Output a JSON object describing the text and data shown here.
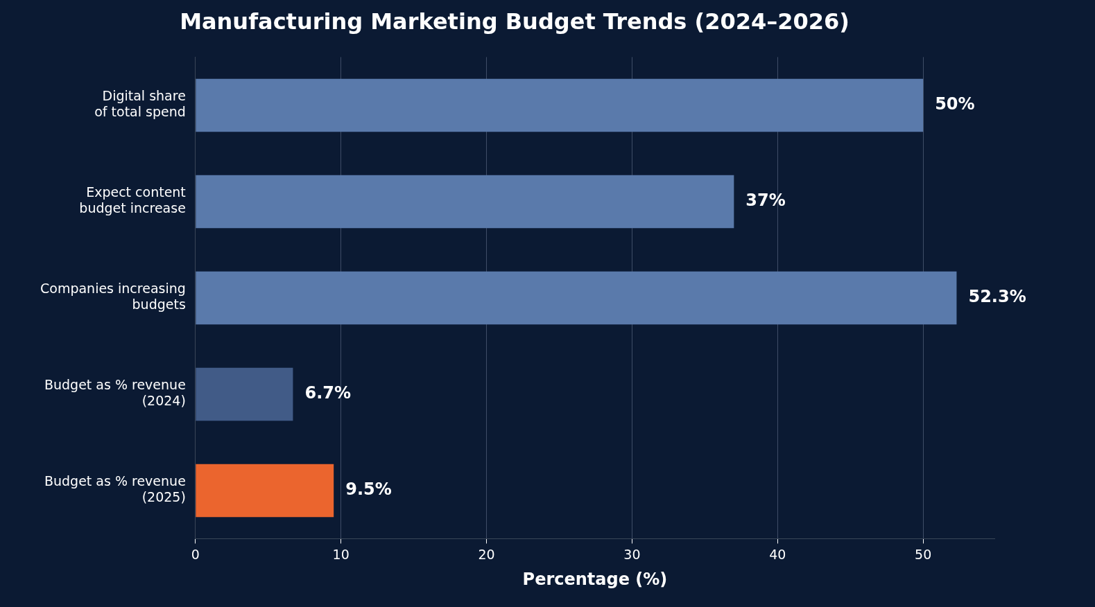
{
  "chart_data": {
    "type": "bar",
    "orientation": "horizontal",
    "title": "Manufacturing Marketing Budget Trends (2024–2026)",
    "xlabel": "Percentage (%)",
    "categories": [
      "Digital share\nof total spend",
      "Expect content\nbudget increase",
      "Companies increasing\nbudgets",
      "Budget as % revenue\n(2024)",
      "Budget as % revenue\n(2025)"
    ],
    "values": [
      50,
      37,
      52.3,
      6.7,
      9.5
    ],
    "colors": [
      "#5a7aab",
      "#5a7aab",
      "#5a7aab",
      "#415b87",
      "#eb652e"
    ],
    "value_labels": [
      "50%",
      "37%",
      "52.3%",
      "6.7%",
      "9.5%"
    ],
    "xlim": [
      0,
      54.9
    ],
    "xticks": [
      0,
      10,
      20,
      30,
      40,
      50
    ],
    "grid": "x"
  }
}
